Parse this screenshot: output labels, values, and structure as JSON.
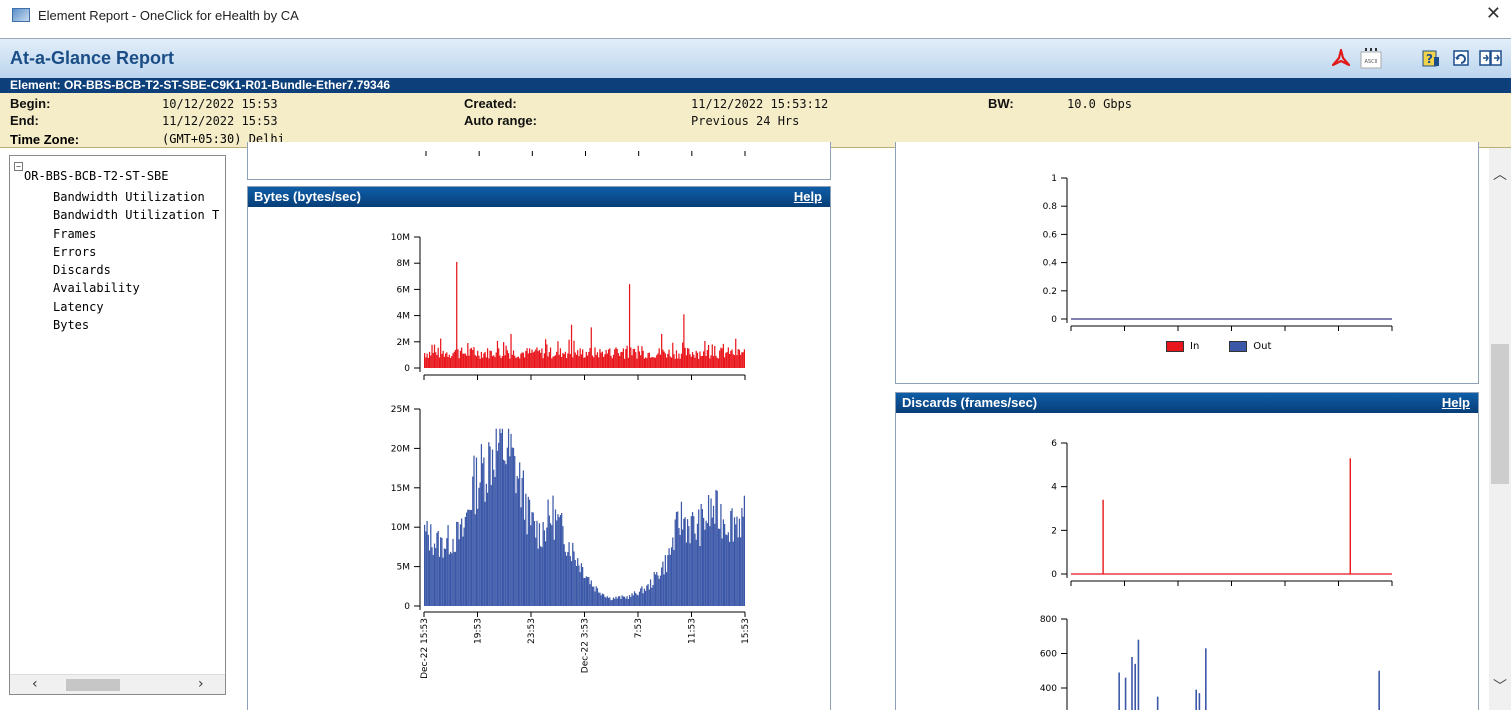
{
  "window": {
    "title": "Element Report - OneClick for eHealth by CA"
  },
  "report": {
    "title": "At-a-Glance Report"
  },
  "toolbar": {
    "ascii_label": "ASCII"
  },
  "element": {
    "text": "Element: OR-BBS-BCB-T2-ST-SBE-C9K1-R01-Bundle-Ether7.79346"
  },
  "info": {
    "begin_label": "Begin:",
    "begin_value": "10/12/2022 15:53",
    "end_label": "End:",
    "end_value": "11/12/2022 15:53",
    "created_label": "Created:",
    "created_value": "11/12/2022 15:53:12",
    "autorange_label": "Auto range:",
    "autorange_value": "Previous 24 Hrs",
    "bw_label": "BW:",
    "bw_value": "10.0 Gbps",
    "tz_label": "Time Zone:",
    "tz_value": "(GMT+05:30) Delhi"
  },
  "sidebar": {
    "root": "OR-BBS-BCB-T2-ST-SBE",
    "items": [
      "Bandwidth Utilization",
      "Bandwidth Utilization T",
      "Frames",
      "Errors",
      "Discards",
      "Availability",
      "Latency",
      "Bytes"
    ]
  },
  "panels": {
    "bytes": {
      "title": "Bytes (bytes/sec)",
      "help": "Help"
    },
    "discards": {
      "title": "Discards (frames/sec)",
      "help": "Help"
    }
  },
  "legend": {
    "in": "In",
    "out": "Out"
  },
  "colors": {
    "in": "#e8151b",
    "out": "#3b57a8",
    "header": "#0d3f7a"
  },
  "chart_data": [
    {
      "type": "bar",
      "panel": "bytes",
      "ylim": [
        0,
        10000000
      ],
      "yticks": [
        "10M",
        "8M",
        "6M",
        "4M",
        "2M",
        "0"
      ],
      "series": [
        {
          "name": "In",
          "color": "#e8151b"
        }
      ],
      "baseline": 700000,
      "noise": 900000,
      "spikes": [
        [
          0.1,
          8100000
        ],
        [
          0.27,
          2600000
        ],
        [
          0.38,
          2200000
        ],
        [
          0.46,
          3300000
        ],
        [
          0.52,
          3100000
        ],
        [
          0.64,
          6400000
        ],
        [
          0.74,
          2600000
        ],
        [
          0.81,
          4100000
        ],
        [
          0.9,
          1800000
        ]
      ]
    },
    {
      "type": "bar",
      "panel": "bytes",
      "ylim": [
        0,
        25000000
      ],
      "yticks": [
        "25M",
        "20M",
        "15M",
        "10M",
        "5M",
        "0"
      ],
      "series": [
        {
          "name": "Out",
          "color": "#3b57a8"
        }
      ],
      "profile": [
        [
          0,
          9500000
        ],
        [
          0.05,
          8000000
        ],
        [
          0.12,
          9500000
        ],
        [
          0.15,
          15500000
        ],
        [
          0.2,
          19000000
        ],
        [
          0.22,
          21000000
        ],
        [
          0.26,
          20500000
        ],
        [
          0.3,
          16000000
        ],
        [
          0.33,
          11000000
        ],
        [
          0.36,
          9500000
        ],
        [
          0.4,
          12000000
        ],
        [
          0.44,
          9000000
        ],
        [
          0.48,
          6000000
        ],
        [
          0.53,
          2500000
        ],
        [
          0.58,
          1000000
        ],
        [
          0.64,
          1200000
        ],
        [
          0.7,
          2500000
        ],
        [
          0.76,
          6000000
        ],
        [
          0.8,
          11500000
        ],
        [
          0.85,
          10000000
        ],
        [
          0.9,
          12500000
        ],
        [
          0.95,
          11000000
        ],
        [
          1,
          11500000
        ]
      ],
      "xticks": [
        "Dec-22 15:53",
        "19:53",
        "23:53",
        "Dec-22 3:53",
        "7:53",
        "11:53",
        "15:53"
      ]
    },
    {
      "type": "line",
      "panel": "frames",
      "ylim": [
        0,
        1
      ],
      "yticks": [
        "1",
        "0.8",
        "0.6",
        "0.4",
        "0.2",
        "0"
      ],
      "series": [
        {
          "name": "In",
          "color": "#e8151b",
          "values": [
            0,
            0
          ]
        },
        {
          "name": "Out",
          "color": "#3b57a8",
          "values": [
            0,
            0
          ]
        }
      ]
    },
    {
      "type": "bar",
      "panel": "discards",
      "ylim": [
        0,
        6
      ],
      "yticks": [
        "6",
        "4",
        "2",
        "0"
      ],
      "series": [
        {
          "name": "In",
          "color": "#e8151b",
          "spikes": [
            [
              0.1,
              3.4
            ],
            [
              0.87,
              5.3
            ]
          ]
        }
      ]
    },
    {
      "type": "bar",
      "panel": "discards",
      "ylim": [
        0,
        800
      ],
      "yticks": [
        "800",
        "600",
        "400"
      ],
      "series": [
        {
          "name": "Out",
          "color": "#3b57a8",
          "spikes": [
            [
              0.15,
              490
            ],
            [
              0.17,
              460
            ],
            [
              0.19,
              580
            ],
            [
              0.2,
              540
            ],
            [
              0.21,
              680
            ],
            [
              0.27,
              350
            ],
            [
              0.39,
              390
            ],
            [
              0.4,
              370
            ],
            [
              0.42,
              630
            ],
            [
              0.96,
              500
            ]
          ]
        }
      ]
    }
  ]
}
